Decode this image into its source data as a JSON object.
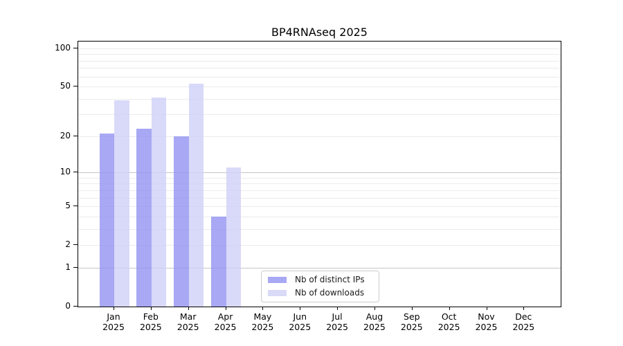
{
  "title": "BP4RNAseq 2025",
  "legend": {
    "items": [
      {
        "label": "Nb of distinct IPs",
        "swatch": "legend-swatch-distinct-ips"
      },
      {
        "label": "Nb of downloads",
        "swatch": "legend-swatch-downloads"
      }
    ]
  },
  "chart_data": {
    "type": "bar",
    "title": "BP4RNAseq 2025",
    "categories": [
      "Jan 2025",
      "Feb 2025",
      "Mar 2025",
      "Apr 2025",
      "May 2025",
      "Jun 2025",
      "Jul 2025",
      "Aug 2025",
      "Sep 2025",
      "Oct 2025",
      "Nov 2025",
      "Dec 2025"
    ],
    "series": [
      {
        "name": "Nb of distinct IPs",
        "color": "#a8a8f5",
        "fill": "rgba(146,146,241,0.8)",
        "values": [
          21,
          23,
          20,
          4,
          null,
          null,
          null,
          null,
          null,
          null,
          null,
          null
        ]
      },
      {
        "name": "Nb of downloads",
        "color": "#d9d9f8",
        "fill": "rgba(208,208,247,0.8)",
        "values": [
          39,
          41,
          53,
          11,
          null,
          null,
          null,
          null,
          null,
          null,
          null,
          null
        ]
      }
    ],
    "yscale": "log1p",
    "ylabel": "",
    "xlabel": "",
    "yticks": [
      0,
      1,
      2,
      5,
      10,
      20,
      50,
      100
    ],
    "ygrid_major": [
      1,
      10
    ],
    "ygrid_minor": [
      2,
      3,
      4,
      5,
      6,
      7,
      8,
      9,
      20,
      30,
      40,
      50,
      60,
      70,
      80,
      90,
      100
    ],
    "ylim": [
      0,
      114
    ],
    "grid": "horizontal",
    "legend_position": "lower center"
  }
}
